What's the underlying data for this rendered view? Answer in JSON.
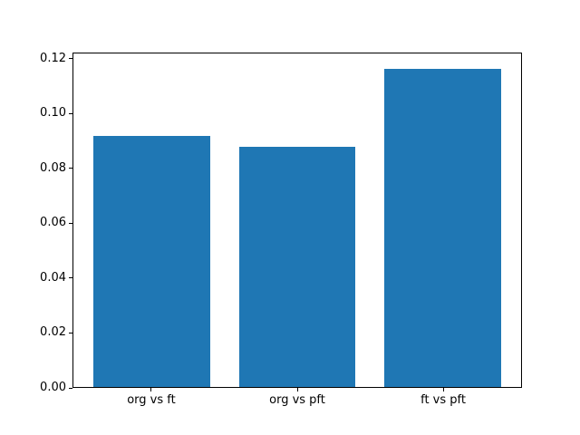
{
  "figure": {
    "background": "#ffffff",
    "spine_color": "#000000",
    "text_color": "#000000"
  },
  "chart_data": {
    "type": "bar",
    "title": "",
    "xlabel": "",
    "ylabel": "",
    "categories": [
      "org vs ft",
      "org vs pft",
      "ft vs pft"
    ],
    "values": [
      0.092,
      0.088,
      0.1165
    ],
    "bar_color": "#1f77b4",
    "bar_width_fraction": 0.8,
    "ylim": [
      0,
      0.1223
    ],
    "yticks": [
      0.0,
      0.02,
      0.04,
      0.06,
      0.08,
      0.1,
      0.12
    ],
    "ytick_labels": [
      "0.00",
      "0.02",
      "0.04",
      "0.06",
      "0.08",
      "0.10",
      "0.12"
    ],
    "grid": false,
    "legend": false
  }
}
